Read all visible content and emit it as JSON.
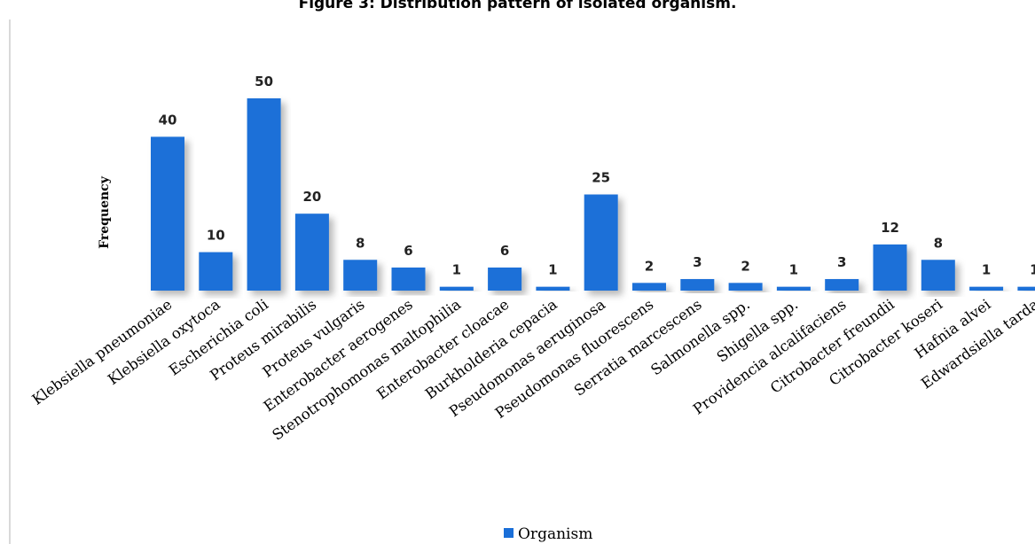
{
  "title": "Figure 3: Distribution pattern of isolated organism.",
  "chart_data": {
    "type": "bar",
    "title": "Figure 3: Distribution pattern of isolated organism.",
    "ylabel": "Frequency",
    "xlabel": "",
    "categories": [
      "Klebsiella pneumoniae",
      "Klebsiella oxytoca",
      "Escherichia coli",
      "Proteus mirabilis",
      "Proteus vulgaris",
      "Enterobacter aerogenes",
      "Stenotrophomonas maltophilia",
      "Enterobacter cloacae",
      "Burkholderia cepacia",
      "Pseudomonas aeruginosa",
      "Pseudomonas fluorescens",
      "Serratia marcescens",
      "Salmonella spp.",
      "Shigella spp.",
      "Providencia alcalifaciens",
      "Citrobacter freundii",
      "Citrobacter koseri",
      "Hafnia alvei",
      "Edwardsiella tarda"
    ],
    "series": [
      {
        "name": "Organism",
        "values": [
          40,
          10,
          50,
          20,
          8,
          6,
          1,
          6,
          1,
          25,
          2,
          3,
          2,
          1,
          3,
          12,
          8,
          1,
          1
        ]
      }
    ],
    "ylim": [
      0,
      50
    ],
    "grid": false,
    "legend": "bottom-center",
    "data_labels": true,
    "color": "#1a6fd8"
  }
}
